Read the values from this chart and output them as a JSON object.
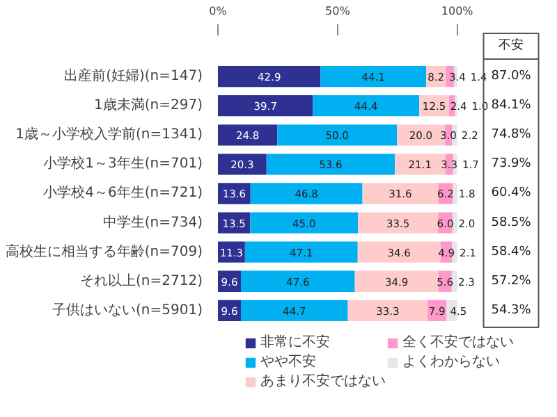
{
  "chart_data": {
    "type": "bar",
    "orientation": "horizontal",
    "stacked": true,
    "legend": "bottom",
    "grid": false,
    "categories": [
      "出産前(妊婦)(n=147)",
      "1歳未満(n=297)",
      "1歳～小学校入学前(n=1341)",
      "小学校1～3年生(n=701)",
      "小学校4～6年生(n=721)",
      "中学生(n=734)",
      "高校生に相当する年齢(n=709)",
      "それ以上(n=2712)",
      "子供はいない(n=5901)"
    ],
    "series": [
      {
        "name": "非常に不安",
        "color": "#2e3192",
        "values": [
          42.9,
          39.7,
          24.8,
          20.3,
          13.6,
          13.5,
          11.3,
          9.6,
          9.6
        ],
        "value_labels": [
          "42.9",
          "39.7",
          "24.8",
          "20.3",
          "13.6",
          "13.5",
          "11.3",
          "9.6",
          "9.6"
        ]
      },
      {
        "name": "やや不安",
        "color": "#00b0f0",
        "values": [
          44.1,
          44.4,
          50.0,
          53.6,
          46.8,
          45.0,
          47.1,
          47.6,
          44.7
        ],
        "value_labels": [
          "44.1",
          "44.4",
          "50.0",
          "53.6",
          "46.8",
          "45.0",
          "47.1",
          "47.6",
          "44.7"
        ]
      },
      {
        "name": "あまり不安ではない",
        "color": "#ffcccc",
        "values": [
          8.2,
          12.5,
          20.0,
          21.1,
          31.6,
          33.5,
          34.6,
          34.9,
          33.3
        ],
        "value_labels": [
          "8.2",
          "12.5",
          "20.0",
          "21.1",
          "31.6",
          "33.5",
          "34.6",
          "34.9",
          "33.3"
        ]
      },
      {
        "name": "全く不安ではない",
        "color": "#ff99cc",
        "values": [
          3.4,
          2.4,
          3.0,
          3.3,
          6.2,
          6.0,
          4.9,
          5.6,
          7.9
        ],
        "value_labels": [
          "3.4",
          "2.4",
          "3.0",
          "3.3",
          "6.2",
          "6.0",
          "4.9",
          "5.6",
          "7.9"
        ]
      },
      {
        "name": "よくわからない",
        "color": "#e6e6e6",
        "values": [
          1.4,
          1.0,
          2.2,
          1.7,
          1.8,
          2.0,
          2.1,
          2.3,
          4.5
        ],
        "value_labels": [
          "1.4",
          "1.0",
          "2.2",
          "1.7",
          "1.8",
          "2.0",
          "2.1",
          "2.3",
          "4.5"
        ]
      }
    ],
    "xlim": [
      0,
      100
    ],
    "xticks": [
      {
        "value": 0,
        "label": "0%"
      },
      {
        "value": 50,
        "label": "50%"
      },
      {
        "value": 100,
        "label": "100%"
      }
    ],
    "annotations": [
      "不安",
      "87.0%",
      "84.1%",
      "74.8%",
      "73.9%",
      "60.4%",
      "58.5%",
      "58.4%",
      "57.2%",
      "54.3%"
    ]
  }
}
